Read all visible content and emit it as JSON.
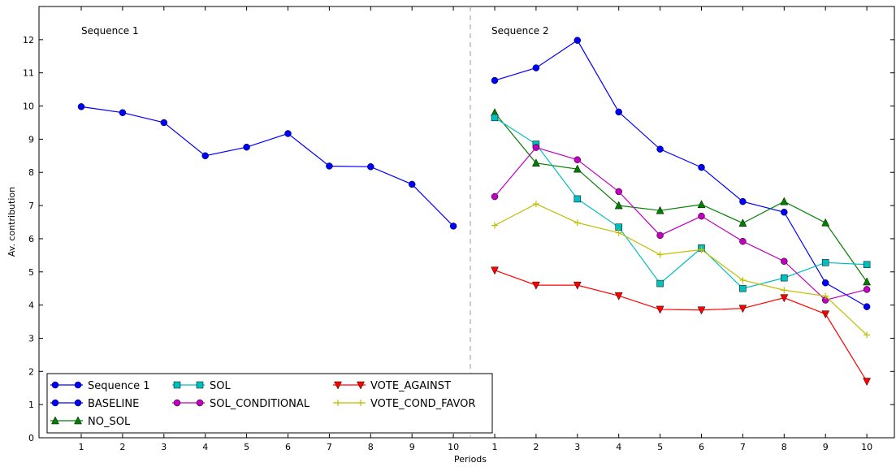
{
  "chart_data": {
    "type": "line",
    "xlabel": "Periods",
    "ylabel": "Av. contribution",
    "ylim": [
      0,
      13
    ],
    "yticks": [
      0,
      1,
      2,
      3,
      4,
      5,
      6,
      7,
      8,
      9,
      10,
      11,
      12
    ],
    "categories": [
      "1",
      "2",
      "3",
      "4",
      "5",
      "6",
      "7",
      "8",
      "9",
      "10",
      "1",
      "2",
      "3",
      "4",
      "5",
      "6",
      "7",
      "8",
      "9",
      "10"
    ],
    "section_labels": [
      "Sequence 1",
      "Sequence 2"
    ],
    "grid": false,
    "legend_position": "lower-left",
    "series": [
      {
        "name": "Sequence 1",
        "color": "#0000ff",
        "marker": "circle",
        "values": [
          9.98,
          9.8,
          9.5,
          8.5,
          8.76,
          9.17,
          8.19,
          8.17,
          7.64,
          6.38,
          null,
          null,
          null,
          null,
          null,
          null,
          null,
          null,
          null,
          null
        ]
      },
      {
        "name": "BASELINE",
        "color": "#0000ff",
        "marker": "circle",
        "values": [
          null,
          null,
          null,
          null,
          null,
          null,
          null,
          null,
          null,
          null,
          10.77,
          11.15,
          11.98,
          9.82,
          8.7,
          8.15,
          7.12,
          6.8,
          4.67,
          3.95
        ]
      },
      {
        "name": "NO_SOL",
        "color": "#007f00",
        "marker": "triangle-up",
        "values": [
          null,
          null,
          null,
          null,
          null,
          null,
          null,
          null,
          null,
          null,
          9.8,
          8.28,
          8.1,
          7.0,
          6.85,
          7.03,
          6.47,
          7.12,
          6.48,
          4.7
        ]
      },
      {
        "name": "SOL",
        "color": "#00bfbf",
        "marker": "square",
        "values": [
          null,
          null,
          null,
          null,
          null,
          null,
          null,
          null,
          null,
          null,
          9.65,
          8.85,
          7.2,
          6.35,
          4.65,
          5.72,
          4.5,
          4.82,
          5.28,
          5.22
        ]
      },
      {
        "name": "SOL_CONDITIONAL",
        "color": "#bf00bf",
        "marker": "circle",
        "values": [
          null,
          null,
          null,
          null,
          null,
          null,
          null,
          null,
          null,
          null,
          7.27,
          8.75,
          8.38,
          7.42,
          6.1,
          6.68,
          5.92,
          5.32,
          4.15,
          4.47
        ]
      },
      {
        "name": "VOTE_AGAINST",
        "color": "#ff0000",
        "marker": "triangle-down",
        "values": [
          null,
          null,
          null,
          null,
          null,
          null,
          null,
          null,
          null,
          null,
          5.05,
          4.6,
          4.6,
          4.28,
          3.87,
          3.85,
          3.9,
          4.22,
          3.73,
          1.7
        ]
      },
      {
        "name": "VOTE_COND_FAVOR",
        "color": "#bfbf00",
        "marker": "plus",
        "values": [
          null,
          null,
          null,
          null,
          null,
          null,
          null,
          null,
          null,
          null,
          6.4,
          7.05,
          6.48,
          6.18,
          5.52,
          5.67,
          4.75,
          4.45,
          4.27,
          3.1
        ]
      }
    ]
  }
}
